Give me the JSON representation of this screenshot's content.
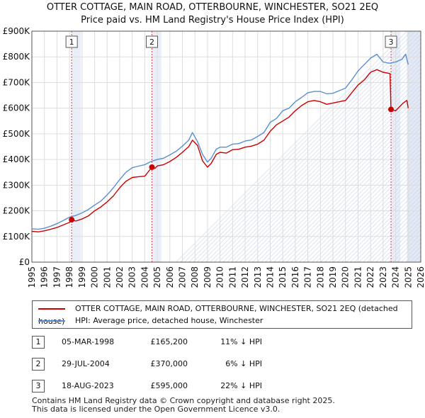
{
  "header": {
    "title_line1": "OTTER COTTAGE, MAIN ROAD, OTTERBOURNE, WINCHESTER, SO21 2EQ",
    "title_line2": "Price paid vs. HM Land Registry's House Price Index (HPI)"
  },
  "colors": {
    "property": "#cc0000",
    "hpi": "#5b8fd0",
    "future_shade": "#e2e9f5",
    "sale_band": "#e9eef8",
    "grid": "#dddddd",
    "marker_line": "#dd4444"
  },
  "chart_data": {
    "type": "line",
    "xlim": [
      1995,
      2026
    ],
    "ylim": [
      0,
      900000
    ],
    "x_ticks": [
      "1995",
      "1996",
      "1997",
      "1998",
      "1999",
      "2000",
      "2001",
      "2002",
      "2003",
      "2004",
      "2005",
      "2006",
      "2007",
      "2008",
      "2009",
      "2010",
      "2011",
      "2012",
      "2013",
      "2014",
      "2015",
      "2016",
      "2017",
      "2018",
      "2019",
      "2020",
      "2021",
      "2022",
      "2023",
      "2024",
      "2025",
      "2026"
    ],
    "y_ticks": [
      {
        "value": 0,
        "label": "£0"
      },
      {
        "value": 100000,
        "label": "£100K"
      },
      {
        "value": 200000,
        "label": "£200K"
      },
      {
        "value": 300000,
        "label": "£300K"
      },
      {
        "value": 400000,
        "label": "£400K"
      },
      {
        "value": 500000,
        "label": "£500K"
      },
      {
        "value": 600000,
        "label": "£600K"
      },
      {
        "value": 700000,
        "label": "£700K"
      },
      {
        "value": 800000,
        "label": "£800K"
      },
      {
        "value": 900000,
        "label": "£900K"
      }
    ],
    "future_from": 2024.9,
    "series": [
      {
        "name": "OTTER COTTAGE, MAIN ROAD, OTTERBOURNE, WINCHESTER, SO21 2EQ (detached house)",
        "x": [
          1995.0,
          1995.5,
          1996.0,
          1996.5,
          1997.0,
          1997.5,
          1998.0,
          1998.17,
          1998.5,
          1999.0,
          1999.5,
          2000.0,
          2000.5,
          2001.0,
          2001.5,
          2002.0,
          2002.5,
          2003.0,
          2003.5,
          2004.0,
          2004.57,
          2004.8,
          2005.0,
          2005.5,
          2006.0,
          2006.5,
          2007.0,
          2007.5,
          2007.8,
          2008.2,
          2008.6,
          2009.0,
          2009.3,
          2009.7,
          2010.0,
          2010.5,
          2011.0,
          2011.5,
          2012.0,
          2012.5,
          2013.0,
          2013.5,
          2014.0,
          2014.5,
          2015.0,
          2015.5,
          2016.0,
          2016.5,
          2017.0,
          2017.5,
          2018.0,
          2018.5,
          2019.0,
          2019.5,
          2020.0,
          2020.5,
          2021.0,
          2021.5,
          2022.0,
          2022.5,
          2023.0,
          2023.55,
          2023.63,
          2024.0,
          2024.3,
          2024.6,
          2024.9,
          2025.0
        ],
        "values": [
          120000,
          118000,
          122000,
          128000,
          135000,
          145000,
          155000,
          165200,
          160000,
          168000,
          180000,
          200000,
          215000,
          235000,
          258000,
          290000,
          315000,
          330000,
          333000,
          335000,
          370000,
          365000,
          375000,
          380000,
          392000,
          408000,
          428000,
          450000,
          475000,
          455000,
          395000,
          370000,
          385000,
          420000,
          428000,
          425000,
          438000,
          440000,
          448000,
          452000,
          460000,
          475000,
          510000,
          535000,
          550000,
          565000,
          590000,
          610000,
          625000,
          630000,
          625000,
          615000,
          620000,
          625000,
          630000,
          660000,
          690000,
          710000,
          740000,
          750000,
          740000,
          735000,
          595000,
          590000,
          605000,
          620000,
          630000,
          600000
        ]
      },
      {
        "name": "HPI: Average price, detached house, Winchester",
        "x": [
          1995.0,
          1995.5,
          1996.0,
          1996.5,
          1997.0,
          1997.5,
          1998.0,
          1998.5,
          1999.0,
          1999.5,
          2000.0,
          2000.5,
          2001.0,
          2001.5,
          2002.0,
          2002.5,
          2003.0,
          2003.5,
          2004.0,
          2004.5,
          2005.0,
          2005.5,
          2006.0,
          2006.5,
          2007.0,
          2007.5,
          2007.8,
          2008.2,
          2008.6,
          2009.0,
          2009.3,
          2009.7,
          2010.0,
          2010.5,
          2011.0,
          2011.5,
          2012.0,
          2012.5,
          2013.0,
          2013.5,
          2014.0,
          2014.5,
          2015.0,
          2015.5,
          2016.0,
          2016.5,
          2017.0,
          2017.5,
          2018.0,
          2018.5,
          2019.0,
          2019.5,
          2020.0,
          2020.5,
          2021.0,
          2021.5,
          2022.0,
          2022.5,
          2023.0,
          2023.5,
          2024.0,
          2024.5,
          2024.8,
          2025.0
        ],
        "values": [
          130000,
          128000,
          132000,
          140000,
          150000,
          162000,
          175000,
          182000,
          192000,
          205000,
          222000,
          238000,
          262000,
          290000,
          322000,
          350000,
          368000,
          374000,
          380000,
          392000,
          400000,
          405000,
          418000,
          432000,
          452000,
          475000,
          505000,
          470000,
          420000,
          390000,
          405000,
          440000,
          448000,
          448000,
          460000,
          462000,
          472000,
          476000,
          490000,
          505000,
          545000,
          560000,
          590000,
          600000,
          625000,
          642000,
          660000,
          665000,
          665000,
          656000,
          658000,
          668000,
          678000,
          710000,
          745000,
          770000,
          795000,
          810000,
          780000,
          775000,
          780000,
          790000,
          810000,
          770000
        ]
      }
    ],
    "sales": [
      {
        "num": "1",
        "x": 1998.17,
        "value": 165200
      },
      {
        "num": "2",
        "x": 2004.57,
        "value": 370000
      },
      {
        "num": "3",
        "x": 2023.63,
        "value": 595000
      }
    ]
  },
  "legend": {
    "property_label": "OTTER COTTAGE, MAIN ROAD, OTTERBOURNE, WINCHESTER, SO21 2EQ (detached house)",
    "hpi_label": "HPI: Average price, detached house, Winchester"
  },
  "sales_table": [
    {
      "num": "1",
      "date": "05-MAR-1998",
      "price": "£165,200",
      "hpi": "11% ↓ HPI"
    },
    {
      "num": "2",
      "date": "29-JUL-2004",
      "price": "£370,000",
      "hpi": "6% ↓ HPI"
    },
    {
      "num": "3",
      "date": "18-AUG-2023",
      "price": "£595,000",
      "hpi": "22% ↓ HPI"
    }
  ],
  "footer": {
    "line1": "Contains HM Land Registry data © Crown copyright and database right 2025.",
    "line2": "This data is licensed under the Open Government Licence v3.0."
  }
}
